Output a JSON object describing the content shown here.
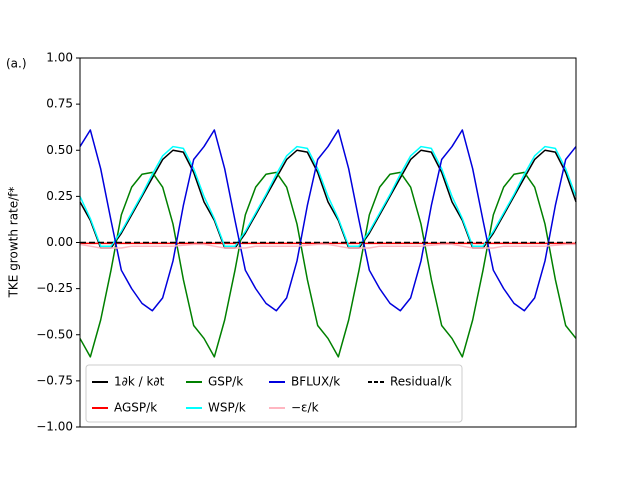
{
  "chart_data": {
    "type": "line",
    "panel_label": "(a.)",
    "y_label": "TKE growth rate/f*",
    "ylim": [
      -1,
      1
    ],
    "yticks": [
      {
        "value": -1,
        "label": "−1.00"
      },
      {
        "value": -0.75,
        "label": "−0.75"
      },
      {
        "value": -0.5,
        "label": "−0.50"
      },
      {
        "value": -0.25,
        "label": "−0.25"
      },
      {
        "value": 0,
        "label": "0.00"
      },
      {
        "value": 0.25,
        "label": "0.25"
      },
      {
        "value": 0.5,
        "label": "0.50"
      },
      {
        "value": 0.75,
        "label": "0.75"
      },
      {
        "value": 1,
        "label": "1.00"
      }
    ],
    "legend": "lower left",
    "series": [
      {
        "name": "1∂k / k∂t",
        "color": "#000000",
        "dash": "solid",
        "values": [
          0.22,
          0.12,
          -0.03,
          -0.03,
          0.05,
          0.15,
          0.25,
          0.35,
          0.45,
          0.5,
          0.49,
          0.38,
          0.22,
          0.12,
          -0.03,
          -0.03,
          0.05,
          0.15,
          0.25,
          0.35,
          0.45,
          0.5,
          0.49,
          0.38,
          0.22,
          0.12,
          -0.03,
          -0.03,
          0.05,
          0.15,
          0.25,
          0.35,
          0.45,
          0.5,
          0.49,
          0.38,
          0.22,
          0.12,
          -0.03,
          -0.03,
          0.05,
          0.15,
          0.25,
          0.35,
          0.45,
          0.5,
          0.49,
          0.38,
          0.22
        ]
      },
      {
        "name": "AGSP/k",
        "color": "#ff0000",
        "dash": "solid",
        "values": [
          -0.005,
          -0.005,
          -0.005,
          -0.005,
          -0.005,
          -0.005,
          -0.005,
          -0.005,
          -0.005,
          -0.005,
          -0.005,
          -0.005,
          -0.005,
          -0.005,
          -0.005,
          -0.005,
          -0.005,
          -0.005,
          -0.005,
          -0.005,
          -0.005,
          -0.005,
          -0.005,
          -0.005,
          -0.005,
          -0.005,
          -0.005,
          -0.005,
          -0.005,
          -0.005,
          -0.005,
          -0.005,
          -0.005,
          -0.005,
          -0.005,
          -0.005,
          -0.005,
          -0.005,
          -0.005,
          -0.005,
          -0.005,
          -0.005,
          -0.005,
          -0.005,
          -0.005,
          -0.005,
          -0.005,
          -0.005,
          -0.005
        ]
      },
      {
        "name": "GSP/k",
        "color": "#008000",
        "dash": "solid",
        "values": [
          -0.52,
          -0.62,
          -0.42,
          -0.15,
          0.15,
          0.3,
          0.37,
          0.38,
          0.3,
          0.1,
          -0.2,
          -0.45,
          -0.52,
          -0.62,
          -0.42,
          -0.15,
          0.15,
          0.3,
          0.37,
          0.38,
          0.3,
          0.1,
          -0.2,
          -0.45,
          -0.52,
          -0.62,
          -0.42,
          -0.15,
          0.15,
          0.3,
          0.37,
          0.38,
          0.3,
          0.1,
          -0.2,
          -0.45,
          -0.52,
          -0.62,
          -0.42,
          -0.15,
          0.15,
          0.3,
          0.37,
          0.38,
          0.3,
          0.1,
          -0.2,
          -0.45,
          -0.52
        ]
      },
      {
        "name": "WSP/k",
        "color": "#00ffff",
        "dash": "solid",
        "values": [
          0.25,
          0.13,
          -0.02,
          -0.02,
          0.06,
          0.16,
          0.26,
          0.37,
          0.47,
          0.52,
          0.51,
          0.4,
          0.25,
          0.13,
          -0.02,
          -0.02,
          0.06,
          0.16,
          0.26,
          0.37,
          0.47,
          0.52,
          0.51,
          0.4,
          0.25,
          0.13,
          -0.02,
          -0.02,
          0.06,
          0.16,
          0.26,
          0.37,
          0.47,
          0.52,
          0.51,
          0.4,
          0.25,
          0.13,
          -0.02,
          -0.02,
          0.06,
          0.16,
          0.26,
          0.37,
          0.47,
          0.52,
          0.51,
          0.4,
          0.25
        ]
      },
      {
        "name": "BFLUX/k",
        "color": "#0000dd",
        "dash": "solid",
        "values": [
          0.52,
          0.61,
          0.4,
          0.12,
          -0.15,
          -0.25,
          -0.33,
          -0.37,
          -0.3,
          -0.1,
          0.2,
          0.45,
          0.52,
          0.61,
          0.4,
          0.12,
          -0.15,
          -0.25,
          -0.33,
          -0.37,
          -0.3,
          -0.1,
          0.2,
          0.45,
          0.52,
          0.61,
          0.4,
          0.12,
          -0.15,
          -0.25,
          -0.33,
          -0.37,
          -0.3,
          -0.1,
          0.2,
          0.45,
          0.52,
          0.61,
          0.4,
          0.12,
          -0.15,
          -0.25,
          -0.33,
          -0.37,
          -0.3,
          -0.1,
          0.2,
          0.45,
          0.52
        ]
      },
      {
        "name": "−ε/k",
        "color": "#ffb6c1",
        "dash": "solid",
        "values": [
          -0.01,
          -0.02,
          -0.03,
          -0.03,
          -0.03,
          -0.02,
          -0.02,
          -0.02,
          -0.02,
          -0.02,
          -0.015,
          -0.01,
          -0.01,
          -0.02,
          -0.03,
          -0.03,
          -0.03,
          -0.02,
          -0.02,
          -0.02,
          -0.02,
          -0.02,
          -0.015,
          -0.01,
          -0.01,
          -0.02,
          -0.03,
          -0.03,
          -0.03,
          -0.02,
          -0.02,
          -0.02,
          -0.02,
          -0.02,
          -0.015,
          -0.01,
          -0.01,
          -0.02,
          -0.03,
          -0.03,
          -0.03,
          -0.02,
          -0.02,
          -0.02,
          -0.02,
          -0.02,
          -0.015,
          -0.01,
          -0.01
        ]
      },
      {
        "name": "Residual/k",
        "color": "#000000",
        "dash": "dashed",
        "values": [
          0,
          0,
          0,
          0,
          0,
          0,
          0,
          0,
          0,
          0,
          0,
          0,
          0,
          0,
          0,
          0,
          0,
          0,
          0,
          0,
          0,
          0,
          0,
          0,
          0,
          0,
          0,
          0,
          0,
          0,
          0,
          0,
          0,
          0,
          0,
          0,
          0,
          0,
          0,
          0,
          0,
          0,
          0,
          0,
          0,
          0,
          0,
          0,
          0
        ]
      }
    ]
  }
}
